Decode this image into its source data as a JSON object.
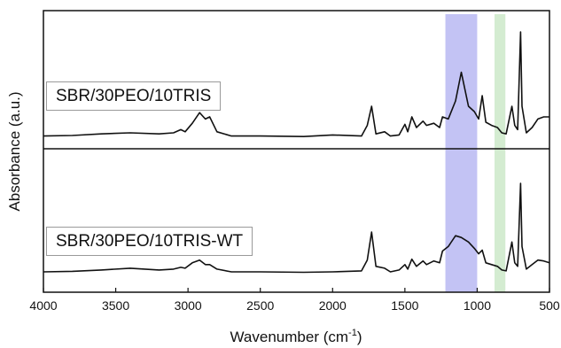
{
  "chart_data": {
    "type": "line",
    "xlabel": "Wavenumber (cm",
    "xlabel_sup": "-1",
    "xlabel_close": ")",
    "ylabel": "Absorbance (a.u.)",
    "xlim": [
      4000,
      500
    ],
    "x_ticks": [
      4000,
      3500,
      3000,
      2500,
      2000,
      1500,
      1000,
      500
    ],
    "x_reversed": true,
    "grid": false,
    "highlight_bands": [
      {
        "x_from": 1220,
        "x_to": 1000,
        "color": "#b9b9f2"
      },
      {
        "x_from": 880,
        "x_to": 805,
        "color": "#cde9c9"
      }
    ],
    "series": [
      {
        "name": "SBR/30PEO/10TRIS",
        "points": [
          [
            4000,
            0.02
          ],
          [
            3800,
            0.025
          ],
          [
            3600,
            0.04
          ],
          [
            3400,
            0.05
          ],
          [
            3200,
            0.04
          ],
          [
            3100,
            0.05
          ],
          [
            3050,
            0.08
          ],
          [
            3020,
            0.06
          ],
          [
            2970,
            0.14
          ],
          [
            2920,
            0.24
          ],
          [
            2880,
            0.18
          ],
          [
            2850,
            0.2
          ],
          [
            2800,
            0.06
          ],
          [
            2700,
            0.02
          ],
          [
            2500,
            0.02
          ],
          [
            2200,
            0.015
          ],
          [
            2000,
            0.03
          ],
          [
            1800,
            0.02
          ],
          [
            1760,
            0.12
          ],
          [
            1730,
            0.3
          ],
          [
            1700,
            0.04
          ],
          [
            1640,
            0.06
          ],
          [
            1600,
            0.02
          ],
          [
            1540,
            0.03
          ],
          [
            1500,
            0.13
          ],
          [
            1480,
            0.06
          ],
          [
            1452,
            0.2
          ],
          [
            1420,
            0.1
          ],
          [
            1375,
            0.16
          ],
          [
            1350,
            0.12
          ],
          [
            1300,
            0.14
          ],
          [
            1260,
            0.1
          ],
          [
            1240,
            0.2
          ],
          [
            1200,
            0.18
          ],
          [
            1150,
            0.35
          ],
          [
            1110,
            0.62
          ],
          [
            1060,
            0.3
          ],
          [
            1020,
            0.25
          ],
          [
            990,
            0.18
          ],
          [
            965,
            0.4
          ],
          [
            940,
            0.15
          ],
          [
            900,
            0.12
          ],
          [
            860,
            0.1
          ],
          [
            830,
            0.05
          ],
          [
            800,
            0.04
          ],
          [
            760,
            0.3
          ],
          [
            740,
            0.12
          ],
          [
            720,
            0.08
          ],
          [
            700,
            1.0
          ],
          [
            690,
            0.3
          ],
          [
            660,
            0.05
          ],
          [
            620,
            0.1
          ],
          [
            580,
            0.18
          ],
          [
            540,
            0.2
          ],
          [
            500,
            0.2
          ]
        ]
      },
      {
        "name": "SBR/30PEO/10TRIS-WT",
        "points": [
          [
            4000,
            0.02
          ],
          [
            3800,
            0.025
          ],
          [
            3600,
            0.04
          ],
          [
            3400,
            0.06
          ],
          [
            3200,
            0.04
          ],
          [
            3100,
            0.05
          ],
          [
            3050,
            0.07
          ],
          [
            3020,
            0.06
          ],
          [
            2970,
            0.12
          ],
          [
            2920,
            0.15
          ],
          [
            2880,
            0.1
          ],
          [
            2850,
            0.1
          ],
          [
            2800,
            0.05
          ],
          [
            2700,
            0.02
          ],
          [
            2500,
            0.02
          ],
          [
            2200,
            0.015
          ],
          [
            2000,
            0.02
          ],
          [
            1800,
            0.03
          ],
          [
            1760,
            0.15
          ],
          [
            1730,
            0.46
          ],
          [
            1700,
            0.08
          ],
          [
            1640,
            0.06
          ],
          [
            1600,
            0.02
          ],
          [
            1540,
            0.04
          ],
          [
            1500,
            0.1
          ],
          [
            1480,
            0.05
          ],
          [
            1452,
            0.16
          ],
          [
            1420,
            0.08
          ],
          [
            1375,
            0.14
          ],
          [
            1350,
            0.1
          ],
          [
            1300,
            0.14
          ],
          [
            1260,
            0.12
          ],
          [
            1240,
            0.25
          ],
          [
            1200,
            0.3
          ],
          [
            1150,
            0.42
          ],
          [
            1110,
            0.4
          ],
          [
            1060,
            0.35
          ],
          [
            1020,
            0.28
          ],
          [
            990,
            0.22
          ],
          [
            965,
            0.26
          ],
          [
            940,
            0.12
          ],
          [
            900,
            0.1
          ],
          [
            860,
            0.08
          ],
          [
            830,
            0.04
          ],
          [
            800,
            0.03
          ],
          [
            760,
            0.35
          ],
          [
            740,
            0.12
          ],
          [
            720,
            0.08
          ],
          [
            700,
            1.0
          ],
          [
            690,
            0.3
          ],
          [
            660,
            0.05
          ],
          [
            620,
            0.1
          ],
          [
            580,
            0.15
          ],
          [
            540,
            0.14
          ],
          [
            500,
            0.12
          ]
        ]
      }
    ]
  },
  "labels": {
    "top": "SBR/30PEO/10TRIS",
    "bottom": "SBR/30PEO/10TRIS-WT"
  },
  "colors": {
    "line": "#111111",
    "frame": "#111111"
  }
}
